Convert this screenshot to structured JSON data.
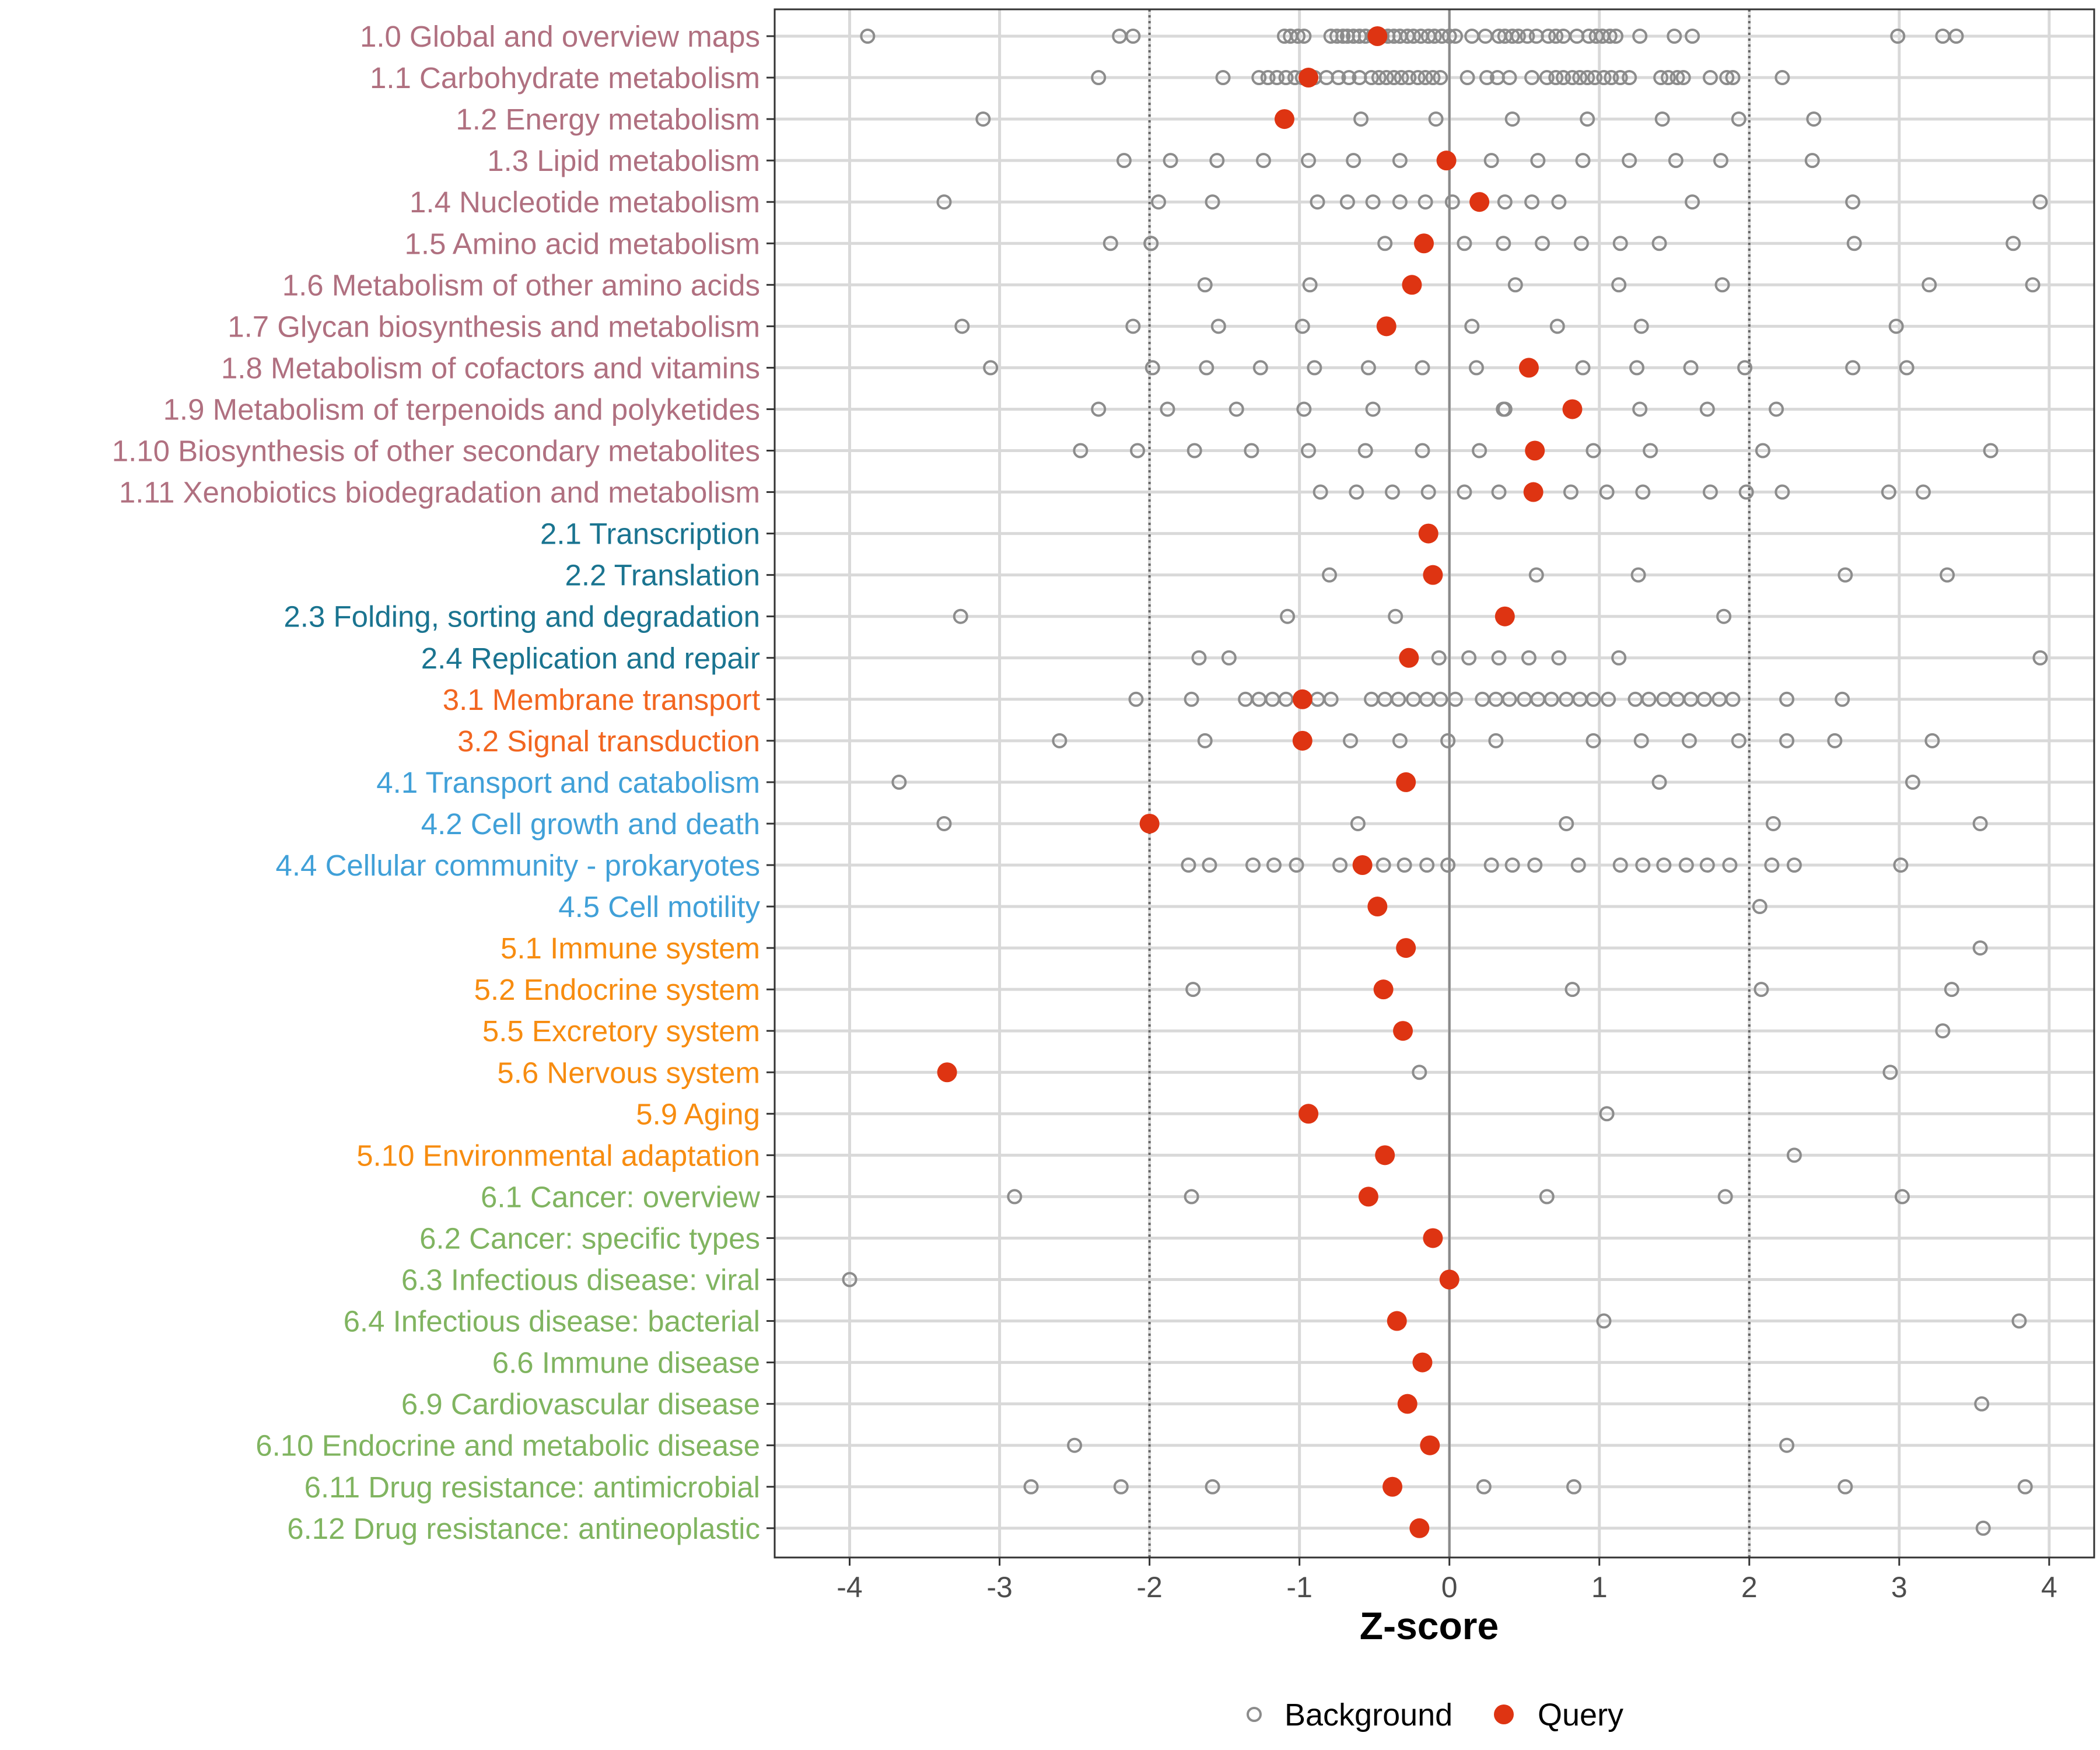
{
  "chart_data": {
    "type": "scatter",
    "title": "",
    "xlabel": "Z-score",
    "ylabel": "",
    "xlim": [
      -4.5,
      4.3
    ],
    "x_ticks": [
      -4,
      -3,
      -2,
      -1,
      0,
      1,
      2,
      3,
      4
    ],
    "x_tick_labels": [
      "-4",
      "-3",
      "-2",
      "-1",
      "0",
      "1",
      "2",
      "3",
      "4"
    ],
    "reference_lines": [
      {
        "x": -2,
        "style": "dotted"
      },
      {
        "x": 0,
        "style": "solid"
      },
      {
        "x": 2,
        "style": "dotted"
      }
    ],
    "legend": {
      "position": "bottom",
      "entries": [
        {
          "label": "Background",
          "marker": "open-circle",
          "color": "#8c8c8c"
        },
        {
          "label": "Query",
          "marker": "filled-circle",
          "color": "#de3412"
        }
      ]
    },
    "group_colors": {
      "1": "#b07080",
      "2": "#1a7490",
      "3": "#f26620",
      "4": "#40a0d8",
      "5": "#f78c10",
      "6": "#80b460"
    },
    "categories": [
      {
        "label": "1.0 Global and overview maps",
        "group": "1",
        "query": -0.48,
        "background": [
          -3.88,
          -2.2,
          -2.11,
          -1.1,
          -1.06,
          -1.01,
          -0.97,
          -0.79,
          -0.75,
          -0.71,
          -0.68,
          -0.64,
          -0.6,
          -0.56,
          -0.51,
          -0.45,
          -0.41,
          -0.37,
          -0.33,
          -0.28,
          -0.24,
          -0.19,
          -0.14,
          -0.1,
          -0.05,
          0.0,
          0.04,
          0.15,
          0.24,
          0.33,
          0.37,
          0.42,
          0.46,
          0.52,
          0.58,
          0.66,
          0.71,
          0.76,
          0.85,
          0.93,
          0.98,
          1.02,
          1.07,
          1.11,
          1.27,
          1.5,
          1.62,
          2.99,
          3.29,
          3.38
        ]
      },
      {
        "label": "1.1 Carbohydrate metabolism",
        "group": "1",
        "query": -0.94,
        "background": [
          -2.34,
          -1.51,
          -1.27,
          -1.21,
          -1.15,
          -1.09,
          -1.03,
          -0.98,
          -0.9,
          -0.82,
          -0.74,
          -0.67,
          -0.6,
          -0.52,
          -0.47,
          -0.42,
          -0.37,
          -0.32,
          -0.27,
          -0.21,
          -0.16,
          -0.11,
          -0.06,
          0.12,
          0.25,
          0.32,
          0.4,
          0.55,
          0.65,
          0.71,
          0.76,
          0.82,
          0.87,
          0.92,
          0.97,
          1.03,
          1.08,
          1.14,
          1.2,
          1.41,
          1.46,
          1.52,
          1.56,
          1.74,
          1.85,
          1.89,
          2.22
        ]
      },
      {
        "label": "1.2 Energy metabolism",
        "group": "1",
        "query": -1.1,
        "background": [
          -3.11,
          -0.59,
          -0.09,
          0.42,
          0.92,
          1.42,
          1.93,
          2.43
        ]
      },
      {
        "label": "1.3 Lipid metabolism",
        "group": "1",
        "query": -0.02,
        "background": [
          -2.17,
          -1.86,
          -1.55,
          -1.24,
          -0.94,
          -0.64,
          -0.33,
          0.28,
          0.59,
          0.89,
          1.2,
          1.51,
          1.81,
          2.42
        ]
      },
      {
        "label": "1.4 Nucleotide metabolism",
        "group": "1",
        "query": 0.2,
        "background": [
          -3.37,
          -1.94,
          -1.58,
          -0.88,
          -0.68,
          -0.51,
          -0.33,
          -0.16,
          0.02,
          0.37,
          0.55,
          0.73,
          1.62,
          2.69,
          3.94
        ]
      },
      {
        "label": "1.5 Amino acid metabolism",
        "group": "1",
        "query": -0.17,
        "background": [
          -2.26,
          -1.99,
          -1.99,
          -0.43,
          0.1,
          0.36,
          0.62,
          0.88,
          1.14,
          1.4,
          2.7,
          3.76
        ]
      },
      {
        "label": "1.6 Metabolism of other amino acids",
        "group": "1",
        "query": -0.25,
        "background": [
          -1.63,
          -0.93,
          0.44,
          1.13,
          1.82,
          3.2,
          3.89
        ]
      },
      {
        "label": "1.7 Glycan biosynthesis and metabolism",
        "group": "1",
        "query": -0.42,
        "background": [
          -3.25,
          -2.11,
          -1.54,
          -0.98,
          0.15,
          0.72,
          1.28,
          2.98
        ]
      },
      {
        "label": "1.8 Metabolism of cofactors and vitamins",
        "group": "1",
        "query": 0.53,
        "background": [
          -3.06,
          -1.98,
          -1.62,
          -1.26,
          -0.9,
          -0.54,
          -0.18,
          0.18,
          0.89,
          1.25,
          1.61,
          1.97,
          2.69,
          3.05
        ]
      },
      {
        "label": "1.9 Metabolism of terpenoids and polyketides",
        "group": "1",
        "query": 0.82,
        "background": [
          -2.34,
          -1.88,
          -1.42,
          -0.97,
          -0.51,
          0.36,
          0.37,
          1.27,
          1.72,
          2.18
        ]
      },
      {
        "label": "1.10 Biosynthesis of other secondary metabolites",
        "group": "1",
        "query": 0.57,
        "background": [
          -2.46,
          -2.08,
          -1.7,
          -1.32,
          -0.94,
          -0.56,
          -0.18,
          0.2,
          0.96,
          1.34,
          2.09,
          3.61
        ]
      },
      {
        "label": "1.11 Xenobiotics biodegradation and metabolism",
        "group": "1",
        "query": 0.56,
        "background": [
          -0.86,
          -0.62,
          -0.38,
          -0.14,
          0.1,
          0.33,
          0.81,
          1.05,
          1.29,
          1.74,
          1.98,
          2.22,
          2.93,
          3.16
        ]
      },
      {
        "label": "2.1 Transcription",
        "group": "2",
        "query": -0.14,
        "background": []
      },
      {
        "label": "2.2 Translation",
        "group": "2",
        "query": -0.11,
        "background": [
          -0.8,
          0.58,
          1.26,
          2.64,
          3.32
        ]
      },
      {
        "label": "2.3 Folding, sorting and degradation",
        "group": "2",
        "query": 0.37,
        "background": [
          -3.26,
          -1.08,
          -0.36,
          1.83
        ]
      },
      {
        "label": "2.4 Replication and repair",
        "group": "2",
        "query": -0.27,
        "background": [
          -1.67,
          -1.47,
          -0.07,
          0.13,
          0.33,
          0.53,
          0.73,
          1.13,
          3.94
        ]
      },
      {
        "label": "3.1 Membrane transport",
        "group": "3",
        "query": -0.98,
        "background": [
          -2.09,
          -1.72,
          -1.36,
          -1.27,
          -1.18,
          -1.09,
          -0.99,
          -0.88,
          -0.79,
          -0.52,
          -0.43,
          -0.34,
          -0.24,
          -0.15,
          -0.06,
          0.04,
          0.22,
          0.31,
          0.4,
          0.5,
          0.59,
          0.68,
          0.78,
          0.87,
          0.96,
          1.06,
          1.24,
          1.33,
          1.43,
          1.52,
          1.61,
          1.7,
          1.8,
          1.89,
          2.25,
          2.62
        ]
      },
      {
        "label": "3.2 Signal transduction",
        "group": "3",
        "query": -0.98,
        "background": [
          -2.6,
          -1.63,
          -0.66,
          -0.33,
          -0.01,
          0.31,
          0.96,
          1.28,
          1.6,
          1.93,
          2.25,
          2.57,
          3.22
        ]
      },
      {
        "label": "4.1 Transport and catabolism",
        "group": "4",
        "query": -0.29,
        "background": [
          -3.67,
          1.4,
          3.09
        ]
      },
      {
        "label": "4.2 Cell growth and death",
        "group": "4",
        "query": -2.0,
        "background": [
          -3.37,
          -0.61,
          0.78,
          2.16,
          3.54
        ]
      },
      {
        "label": "4.4 Cellular community - prokaryotes",
        "group": "4",
        "query": -0.58,
        "background": [
          -1.74,
          -1.6,
          -1.31,
          -1.17,
          -1.02,
          -0.73,
          -0.44,
          -0.3,
          -0.15,
          -0.01,
          0.28,
          0.42,
          0.57,
          0.86,
          1.14,
          1.29,
          1.43,
          1.58,
          1.72,
          1.87,
          2.15,
          2.3,
          3.01
        ]
      },
      {
        "label": "4.5 Cell motility",
        "group": "4",
        "query": -0.48,
        "background": [
          2.07
        ]
      },
      {
        "label": "5.1 Immune system",
        "group": "5",
        "query": -0.29,
        "background": [
          3.54
        ]
      },
      {
        "label": "5.2 Endocrine system",
        "group": "5",
        "query": -0.44,
        "background": [
          -1.71,
          0.82,
          2.08,
          3.35
        ]
      },
      {
        "label": "5.5 Excretory system",
        "group": "5",
        "query": -0.31,
        "background": [
          3.29
        ]
      },
      {
        "label": "5.6 Nervous system",
        "group": "5",
        "query": -3.35,
        "background": [
          -0.2,
          2.94
        ]
      },
      {
        "label": "5.9 Aging",
        "group": "5",
        "query": -0.94,
        "background": [
          1.05
        ]
      },
      {
        "label": "5.10 Environmental adaptation",
        "group": "5",
        "query": -0.43,
        "background": [
          2.3
        ]
      },
      {
        "label": "6.1 Cancer: overview",
        "group": "6",
        "query": -0.54,
        "background": [
          -2.9,
          -1.72,
          0.65,
          1.84,
          3.02
        ]
      },
      {
        "label": "6.2 Cancer: specific types",
        "group": "6",
        "query": -0.11,
        "background": []
      },
      {
        "label": "6.3 Infectious disease: viral",
        "group": "6",
        "query": 0.0,
        "background": [
          -4.0
        ]
      },
      {
        "label": "6.4 Infectious disease: bacterial",
        "group": "6",
        "query": -0.35,
        "background": [
          1.03,
          3.8
        ]
      },
      {
        "label": "6.6 Immune disease",
        "group": "6",
        "query": -0.18,
        "background": []
      },
      {
        "label": "6.9 Cardiovascular disease",
        "group": "6",
        "query": -0.28,
        "background": [
          3.55
        ]
      },
      {
        "label": "6.10 Endocrine and metabolic disease",
        "group": "6",
        "query": -0.13,
        "background": [
          -2.5,
          2.25
        ]
      },
      {
        "label": "6.11 Drug resistance: antimicrobial",
        "group": "6",
        "query": -0.38,
        "background": [
          -2.79,
          -2.19,
          -1.58,
          0.23,
          0.83,
          2.64,
          3.84
        ]
      },
      {
        "label": "6.12 Drug resistance: antineoplastic",
        "group": "6",
        "query": -0.2,
        "background": [
          3.56
        ]
      }
    ]
  }
}
